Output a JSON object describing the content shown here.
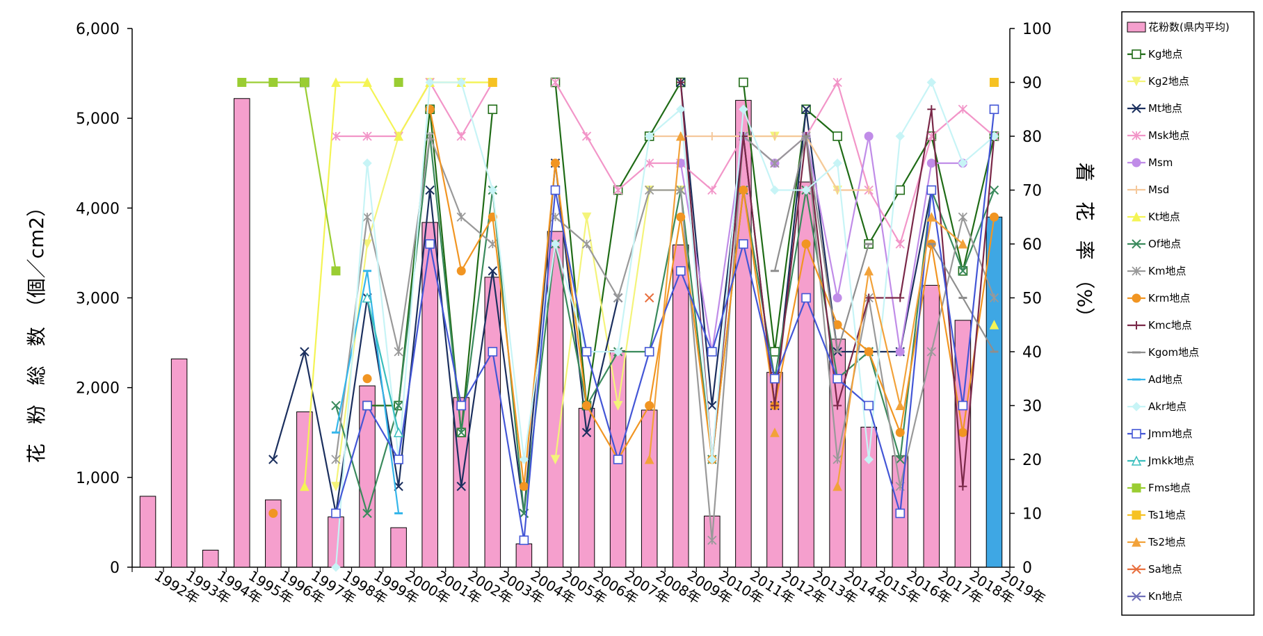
{
  "chart_data": {
    "type": "bar",
    "categories": [
      "1992年",
      "1993年",
      "1994年",
      "1995年",
      "1996年",
      "1997年",
      "1998年",
      "1999年",
      "2000年",
      "2001年",
      "2002年",
      "2003年",
      "2004年",
      "2005年",
      "2006年",
      "2007年",
      "2008年",
      "2009年",
      "2010年",
      "2011年",
      "2012年",
      "2013年",
      "2014年",
      "2015年",
      "2016年",
      "2017年",
      "2018年",
      "2019年"
    ],
    "ylabel": "花　粉　総　数　（個／cm2）",
    "ylabel_right": "着　花　率　（%）",
    "ylim": [
      0,
      6000
    ],
    "ylim_right": [
      0,
      100
    ],
    "yticks": [
      "0",
      "1,000",
      "2,000",
      "3,000",
      "4,000",
      "5,000",
      "6,000"
    ],
    "yticks_right": [
      "0",
      "10",
      "20",
      "30",
      "40",
      "50",
      "60",
      "70",
      "80",
      "90",
      "100"
    ],
    "legend_position": "right",
    "bars": {
      "name": "花粉数(県内平均)",
      "color": "#f59fcd",
      "highlight_color": "#3ea7e4",
      "values": [
        790,
        2320,
        190,
        5220,
        750,
        1730,
        560,
        2020,
        440,
        3840,
        1890,
        3230,
        260,
        3740,
        1770,
        2410,
        1750,
        3590,
        570,
        5200,
        2170,
        4290,
        2540,
        1560,
        1240,
        3140,
        2750,
        3900
      ]
    },
    "series": [
      {
        "name": "Kg地点",
        "color": "#1f6b16",
        "marker": "square-open",
        "values": [
          null,
          null,
          null,
          null,
          null,
          90,
          null,
          30,
          30,
          85,
          25,
          85,
          null,
          90,
          30,
          70,
          80,
          90,
          null,
          90,
          40,
          85,
          80,
          60,
          70,
          80,
          55,
          80
        ]
      },
      {
        "name": "Kg2地点",
        "color": "#f4f47a",
        "marker": "triangle-down",
        "values": [
          null,
          null,
          null,
          null,
          null,
          null,
          15,
          60,
          80,
          90,
          90,
          90,
          null,
          20,
          65,
          30,
          70,
          70,
          null,
          80,
          80,
          80,
          70,
          null,
          null,
          null,
          null,
          null
        ]
      },
      {
        "name": "Mt地点",
        "color": "#1b2f5e",
        "marker": "x",
        "values": [
          null,
          null,
          null,
          null,
          20,
          40,
          10,
          50,
          15,
          70,
          15,
          55,
          10,
          75,
          25,
          50,
          null,
          90,
          30,
          80,
          30,
          85,
          40,
          40,
          40,
          70,
          null,
          80
        ]
      },
      {
        "name": "Msk地点",
        "color": "#f295c8",
        "marker": "star",
        "values": [
          null,
          null,
          null,
          null,
          null,
          null,
          80,
          80,
          80,
          90,
          80,
          90,
          null,
          90,
          80,
          70,
          75,
          75,
          70,
          80,
          75,
          80,
          90,
          70,
          60,
          80,
          85,
          80
        ]
      },
      {
        "name": "Msm",
        "color": "#c08ce8",
        "marker": "circle",
        "values": [
          null,
          null,
          null,
          null,
          null,
          null,
          null,
          null,
          null,
          null,
          null,
          null,
          null,
          null,
          null,
          null,
          null,
          75,
          40,
          80,
          75,
          80,
          50,
          80,
          40,
          75,
          75,
          null
        ]
      },
      {
        "name": "Msd",
        "color": "#f5c89b",
        "marker": "plus",
        "values": [
          null,
          null,
          null,
          null,
          null,
          null,
          null,
          null,
          null,
          null,
          null,
          null,
          null,
          null,
          null,
          null,
          80,
          80,
          80,
          80,
          80,
          80,
          70,
          70,
          null,
          null,
          null,
          null
        ]
      },
      {
        "name": "Kt地点",
        "color": "#f4f454",
        "marker": "triangle",
        "values": [
          null,
          null,
          null,
          null,
          null,
          15,
          90,
          90,
          80,
          90,
          90,
          90,
          null,
          null,
          null,
          null,
          null,
          null,
          null,
          null,
          null,
          null,
          null,
          null,
          null,
          null,
          null,
          45
        ]
      },
      {
        "name": "Of地点",
        "color": "#3a8a5c",
        "marker": "x",
        "values": [
          null,
          null,
          null,
          null,
          null,
          null,
          30,
          10,
          30,
          80,
          25,
          70,
          10,
          60,
          30,
          40,
          40,
          70,
          20,
          70,
          35,
          70,
          35,
          40,
          20,
          70,
          55,
          70
        ]
      },
      {
        "name": "Km地点",
        "color": "#999999",
        "marker": "star",
        "values": [
          null,
          null,
          null,
          null,
          null,
          null,
          20,
          65,
          40,
          80,
          65,
          60,
          null,
          65,
          60,
          50,
          70,
          70,
          5,
          80,
          75,
          80,
          20,
          50,
          15,
          40,
          65,
          50
        ]
      },
      {
        "name": "Krm地点",
        "color": "#f19522",
        "marker": "circle",
        "values": [
          null,
          null,
          null,
          null,
          10,
          null,
          null,
          35,
          null,
          85,
          55,
          65,
          15,
          75,
          30,
          20,
          30,
          65,
          20,
          70,
          30,
          60,
          45,
          40,
          25,
          60,
          25,
          65
        ]
      },
      {
        "name": "Kmc地点",
        "color": "#7a2848",
        "marker": "plus",
        "values": [
          null,
          null,
          null,
          null,
          null,
          null,
          null,
          null,
          null,
          null,
          null,
          null,
          null,
          null,
          null,
          null,
          null,
          90,
          20,
          80,
          30,
          80,
          30,
          50,
          50,
          85,
          15,
          80
        ]
      },
      {
        "name": "Kgom地点",
        "color": "#8e8e8e",
        "marker": "dash",
        "values": [
          null,
          null,
          null,
          null,
          null,
          null,
          null,
          null,
          null,
          null,
          null,
          null,
          null,
          null,
          null,
          null,
          null,
          null,
          null,
          null,
          55,
          80,
          40,
          60,
          null,
          60,
          50,
          40
        ]
      },
      {
        "name": "Ad地点",
        "color": "#35b6ea",
        "marker": "dash",
        "values": [
          null,
          null,
          null,
          null,
          null,
          null,
          25,
          55,
          10,
          null,
          null,
          null,
          null,
          null,
          null,
          null,
          null,
          null,
          null,
          null,
          null,
          null,
          null,
          null,
          null,
          null,
          null,
          null
        ]
      },
      {
        "name": "Akr地点",
        "color": "#c7f4f6",
        "marker": "diamond",
        "values": [
          null,
          null,
          null,
          null,
          null,
          null,
          0,
          75,
          20,
          90,
          90,
          70,
          20,
          60,
          40,
          40,
          80,
          85,
          20,
          85,
          70,
          70,
          75,
          20,
          80,
          90,
          75,
          80
        ]
      },
      {
        "name": "Jmm地点",
        "color": "#4356d6",
        "marker": "square-open",
        "values": [
          null,
          null,
          null,
          null,
          null,
          null,
          10,
          30,
          20,
          60,
          30,
          40,
          5,
          70,
          40,
          20,
          40,
          55,
          40,
          60,
          35,
          50,
          35,
          30,
          10,
          70,
          30,
          85
        ]
      },
      {
        "name": "Jmkk地点",
        "color": "#39bebd",
        "marker": "triangle-open",
        "values": [
          null,
          null,
          null,
          null,
          null,
          null,
          null,
          50,
          25,
          null,
          null,
          null,
          null,
          null,
          null,
          null,
          null,
          null,
          null,
          null,
          null,
          null,
          null,
          null,
          null,
          null,
          null,
          null
        ]
      },
      {
        "name": "Fms地点",
        "color": "#9acd32",
        "marker": "square-filled",
        "values": [
          null,
          null,
          null,
          90,
          90,
          90,
          55,
          null,
          90,
          null,
          null,
          null,
          null,
          null,
          null,
          null,
          null,
          null,
          null,
          null,
          null,
          null,
          null,
          null,
          null,
          null,
          null,
          null
        ]
      },
      {
        "name": "Ts1地点",
        "color": "#f6c223",
        "marker": "square-filled",
        "values": [
          null,
          null,
          null,
          null,
          null,
          null,
          null,
          null,
          null,
          null,
          null,
          90,
          null,
          null,
          null,
          null,
          null,
          null,
          null,
          null,
          null,
          null,
          null,
          null,
          null,
          null,
          null,
          90
        ]
      },
      {
        "name": "Ts2地点",
        "color": "#f2a23a",
        "marker": "triangle",
        "values": [
          null,
          null,
          null,
          null,
          null,
          null,
          null,
          null,
          null,
          null,
          null,
          null,
          null,
          null,
          null,
          null,
          20,
          80,
          null,
          null,
          25,
          null,
          15,
          55,
          30,
          65,
          60,
          null
        ]
      },
      {
        "name": "Sa地点",
        "color": "#e86f3e",
        "marker": "x",
        "values": [
          null,
          null,
          null,
          null,
          null,
          null,
          null,
          null,
          null,
          null,
          null,
          null,
          null,
          null,
          null,
          null,
          50,
          null,
          null,
          null,
          null,
          null,
          null,
          null,
          null,
          null,
          null,
          null
        ]
      },
      {
        "name": "Kn地点",
        "color": "#6f6fb8",
        "marker": "x",
        "values": [
          null,
          null,
          null,
          null,
          null,
          null,
          null,
          null,
          null,
          null,
          null,
          null,
          null,
          null,
          null,
          null,
          null,
          null,
          null,
          null,
          null,
          null,
          null,
          null,
          null,
          null,
          null,
          null
        ]
      }
    ]
  }
}
